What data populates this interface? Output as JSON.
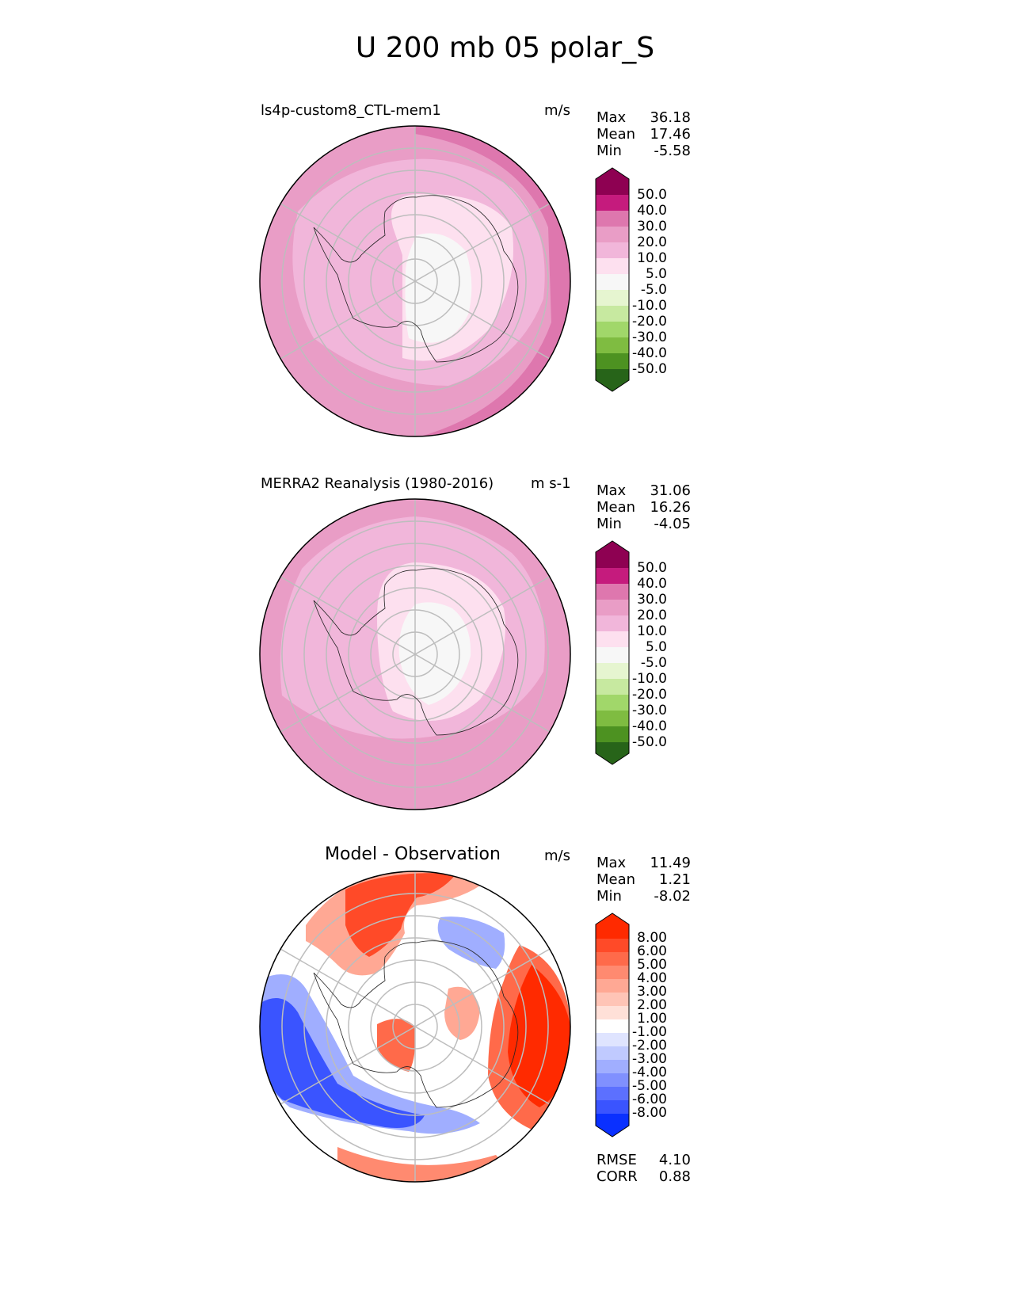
{
  "title": "U 200 mb 05 polar_S",
  "panels": [
    {
      "label": "ls4p-custom8_CTL-mem1",
      "units": "m/s",
      "stats": [
        {
          "name": "Max",
          "value": "36.18"
        },
        {
          "name": "Mean",
          "value": "17.46"
        },
        {
          "name": "Min",
          "value": "-5.58"
        }
      ]
    },
    {
      "label": "MERRA2 Reanalysis (1980-2016)",
      "units": "m s-1",
      "stats": [
        {
          "name": "Max",
          "value": "31.06"
        },
        {
          "name": "Mean",
          "value": "16.26"
        },
        {
          "name": "Min",
          "value": "-4.05"
        }
      ]
    },
    {
      "label": "Model - Observation",
      "units": "m/s",
      "stats": [
        {
          "name": "Max",
          "value": "11.49"
        },
        {
          "name": "Mean",
          "value": "1.21"
        },
        {
          "name": "Min",
          "value": "-8.02"
        }
      ],
      "extra_stats": [
        {
          "name": "RMSE",
          "value": "4.10"
        },
        {
          "name": "CORR",
          "value": "0.88"
        }
      ]
    }
  ],
  "chart_data": [
    {
      "type": "heatmap",
      "projection": "south polar stereographic",
      "title": "ls4p-custom8_CTL-mem1",
      "units": "m/s",
      "colorbar": {
        "ticks": [
          "50.0",
          "40.0",
          "30.0",
          "20.0",
          "10.0",
          "5.0",
          "-5.0",
          "-10.0",
          "-20.0",
          "-30.0",
          "-40.0",
          "-50.0"
        ],
        "colors": [
          "#8e0152",
          "#c51b7d",
          "#de77ae",
          "#e99dc6",
          "#f1b6da",
          "#fde0ef",
          "#f7f7f7",
          "#e6f5d0",
          "#c7e9a0",
          "#a1d76a",
          "#7fbc41",
          "#4d9221",
          "#276419"
        ]
      }
    },
    {
      "type": "heatmap",
      "projection": "south polar stereographic",
      "title": "MERRA2 Reanalysis (1980-2016)",
      "units": "m s-1",
      "colorbar": {
        "ticks": [
          "50.0",
          "40.0",
          "30.0",
          "20.0",
          "10.0",
          "5.0",
          "-5.0",
          "-10.0",
          "-20.0",
          "-30.0",
          "-40.0",
          "-50.0"
        ],
        "colors": [
          "#8e0152",
          "#c51b7d",
          "#de77ae",
          "#e99dc6",
          "#f1b6da",
          "#fde0ef",
          "#f7f7f7",
          "#e6f5d0",
          "#c7e9a0",
          "#a1d76a",
          "#7fbc41",
          "#4d9221",
          "#276419"
        ]
      }
    },
    {
      "type": "heatmap",
      "projection": "south polar stereographic",
      "title": "Model - Observation",
      "units": "m/s",
      "colorbar": {
        "ticks": [
          "8.00",
          "6.00",
          "5.00",
          "4.00",
          "3.00",
          "2.00",
          "1.00",
          "-1.00",
          "-2.00",
          "-3.00",
          "-4.00",
          "-5.00",
          "-6.00",
          "-8.00"
        ],
        "colors": [
          "#ff2a00",
          "#ff4a28",
          "#ff6a4a",
          "#ff8a70",
          "#ffa894",
          "#ffc4b6",
          "#ffe0d8",
          "#ffffff",
          "#dfe4ff",
          "#c0caff",
          "#a0aeff",
          "#8090ff",
          "#5c70ff",
          "#3a54ff",
          "#0a30ff"
        ]
      }
    }
  ]
}
